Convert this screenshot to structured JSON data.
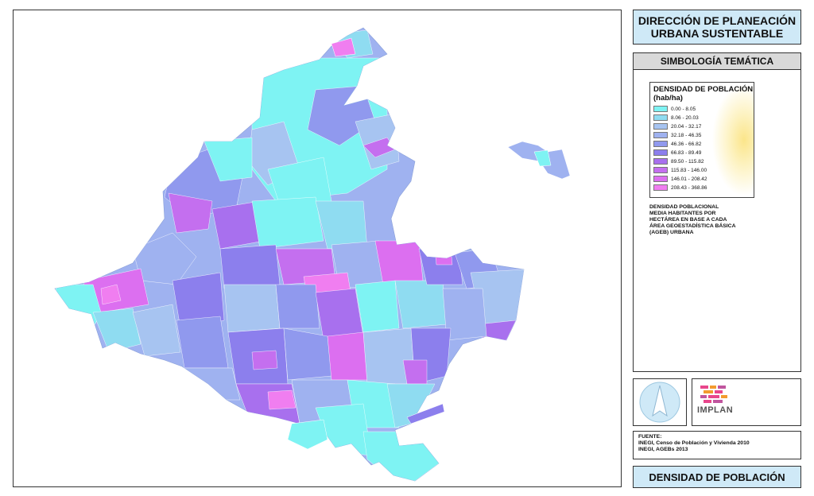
{
  "title": "DIRECCIÓN DE PLANEACIÓN URBANA SUSTENTABLE",
  "symbology_header": "SIMBOLOGÍA TEMÁTICA",
  "legend": {
    "title_line1": "DENSIDAD DE POBLACIÓN",
    "title_line2": "(hab/ha)",
    "classes": [
      {
        "label": "0.00 - 8.05",
        "color": "#7ef3f3"
      },
      {
        "label": "8.06 - 20.03",
        "color": "#8fdcf1"
      },
      {
        "label": "20.04 - 32.17",
        "color": "#a7c4f1"
      },
      {
        "label": "32.18 - 46.35",
        "color": "#9fb2f0"
      },
      {
        "label": "46.36 - 66.82",
        "color": "#9099ee"
      },
      {
        "label": "66.83 - 89.49",
        "color": "#8c7fed"
      },
      {
        "label": "89.50 - 115.82",
        "color": "#a870ee"
      },
      {
        "label": "115.83 - 146.00",
        "color": "#c46fef"
      },
      {
        "label": "146.01 - 208.42",
        "color": "#dc6ff0"
      },
      {
        "label": "208.43 - 368.86",
        "color": "#f07ef0"
      }
    ]
  },
  "note": [
    "DENSIDAD POBLACIONAL",
    "MEDIA HABITANTES POR",
    "HECTÁREA EN BASE A CADA",
    "ÁREA GEOESTADÍSTICA BÁSICA",
    "(AGEB) URBANA"
  ],
  "logo": {
    "name": "IMPLAN",
    "colors": [
      "#e8468c",
      "#f39b2f",
      "#c0559e"
    ]
  },
  "north_arrow_icon": "north-arrow-icon",
  "source": [
    "FUENTE:",
    "INEGI, Censo de Población y Vivienda 2010",
    "INEGI, AGEBs 2013"
  ],
  "footer": "DENSIDAD DE POBLACIÓN"
}
